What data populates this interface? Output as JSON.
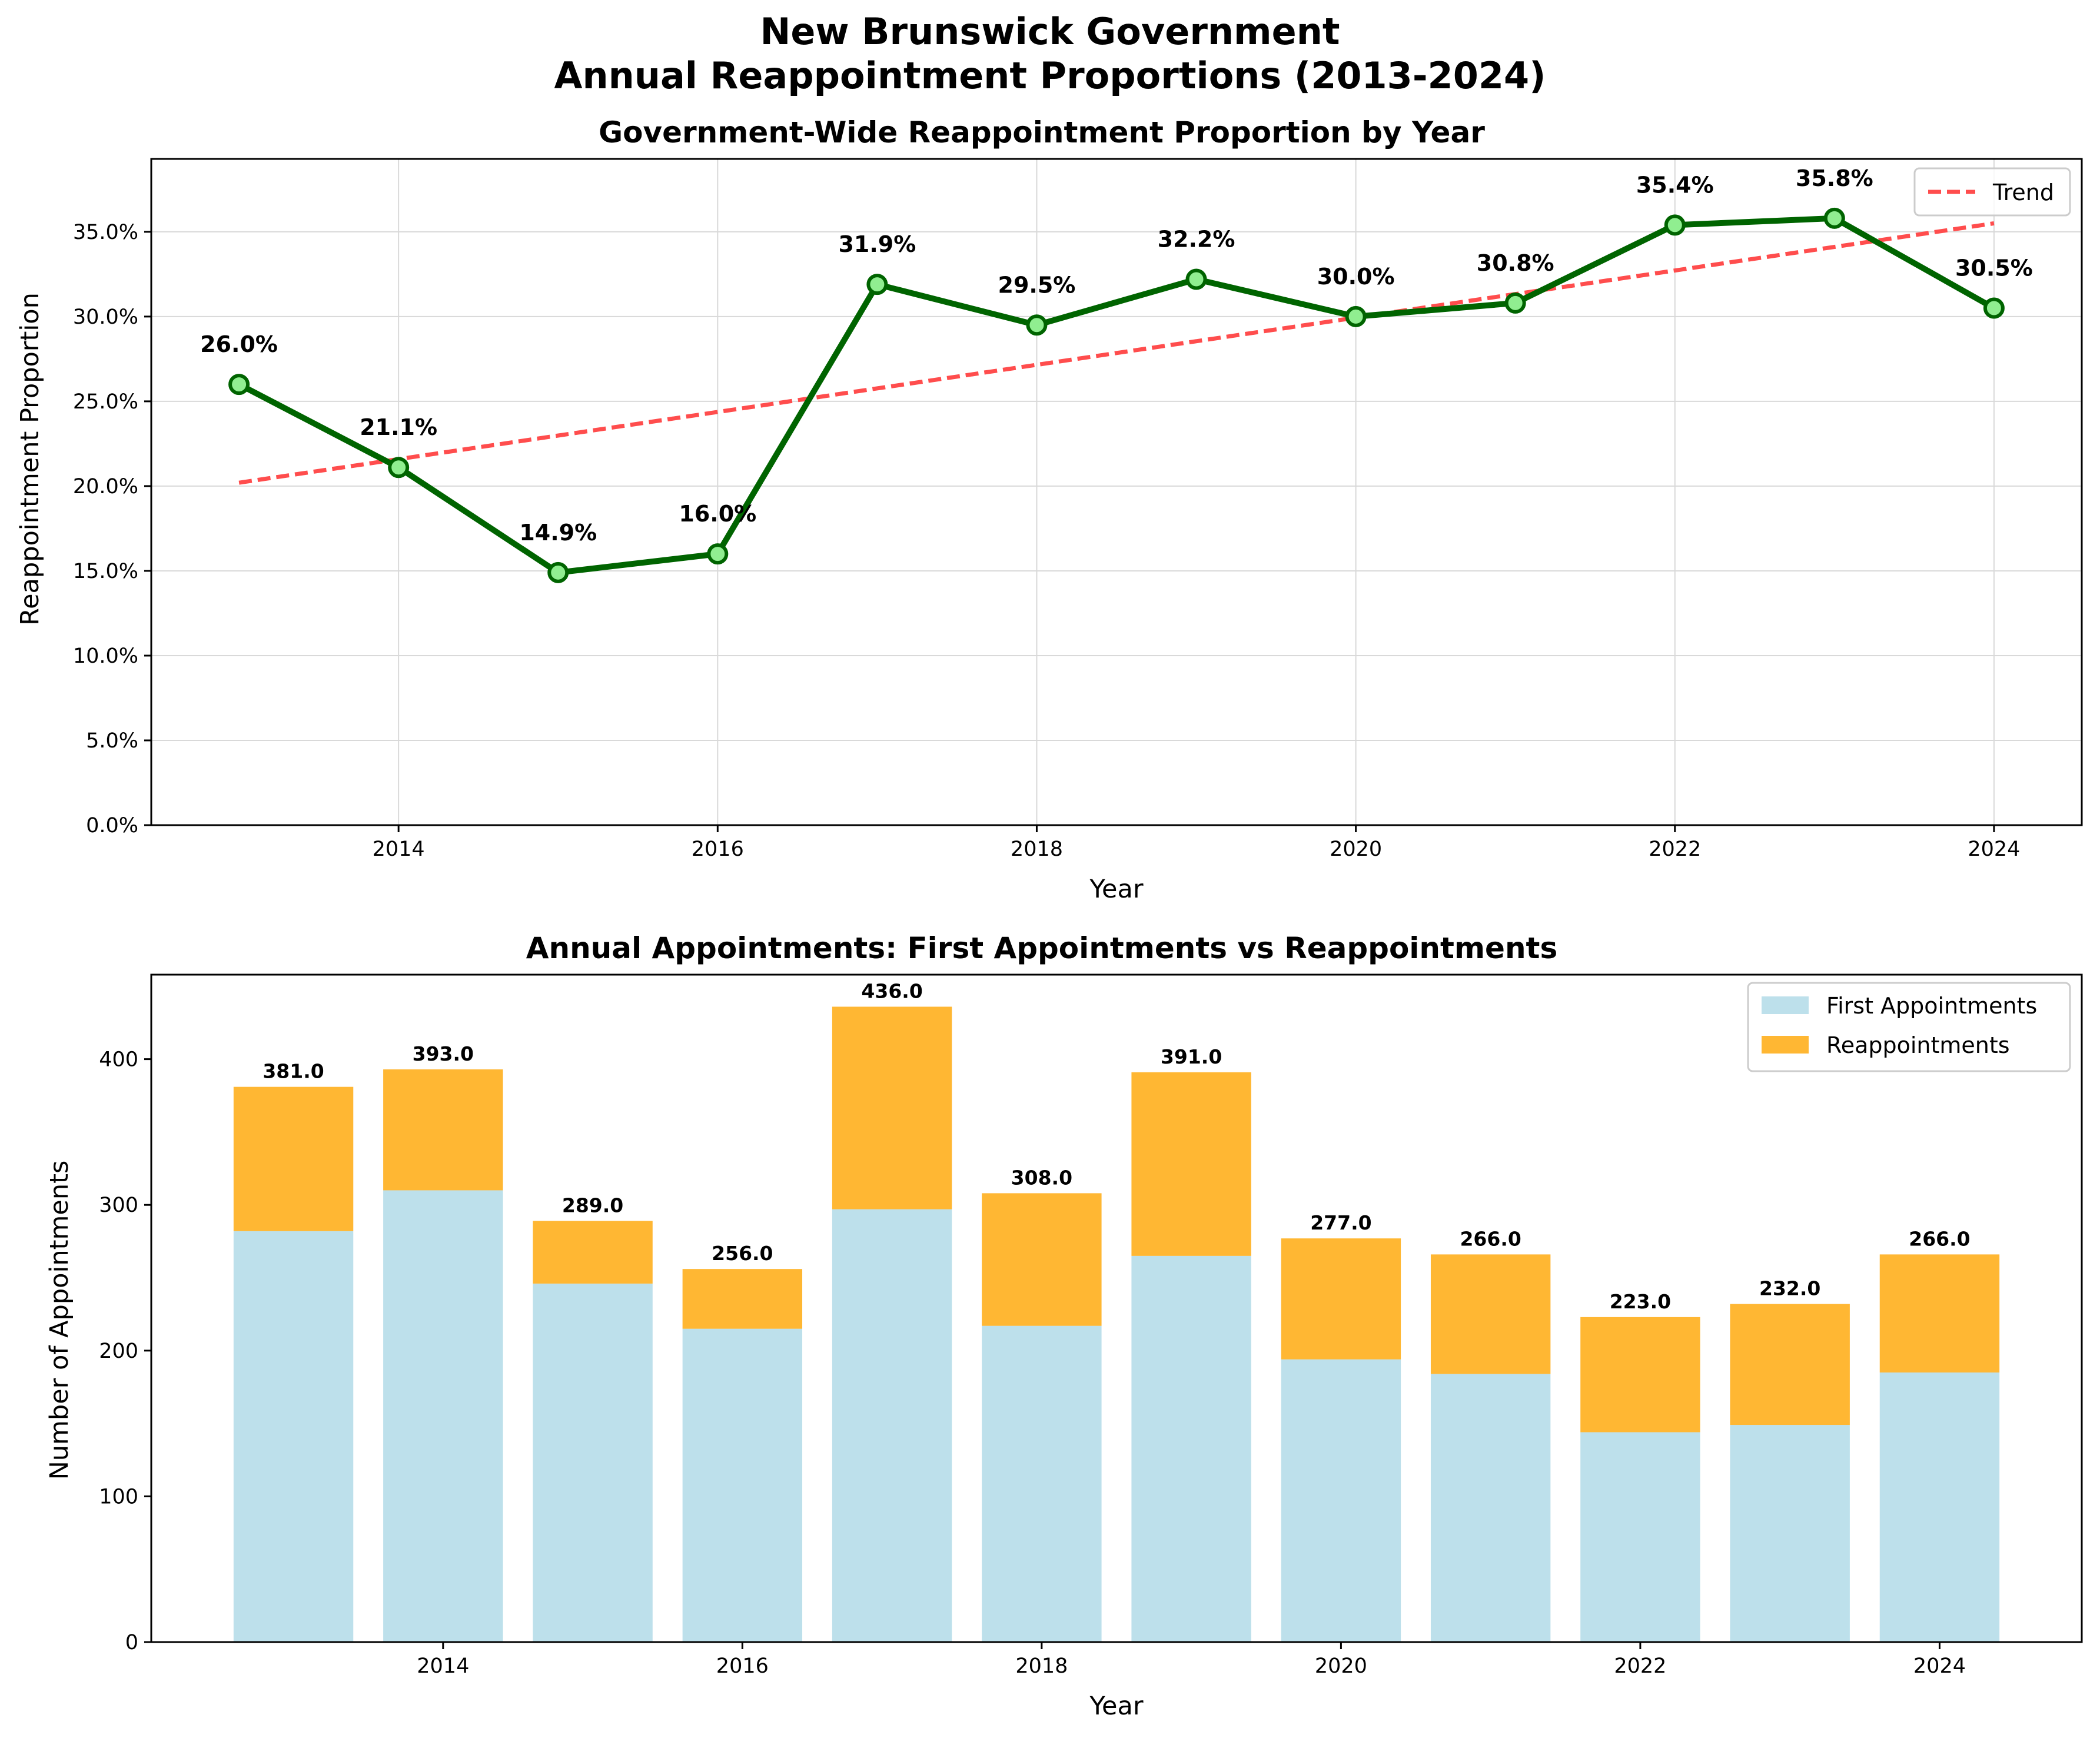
{
  "figure": {
    "suptitle_line1": "New Brunswick Government",
    "suptitle_line2": "Annual Reappointment Proportions (2013-2024)"
  },
  "colors": {
    "line": "#006400",
    "marker_fill": "#90ee90",
    "trend": "#ff4d4d",
    "first_appointments": "#add8e6",
    "reappointments": "#ffa500",
    "grid": "#d9d9d9"
  },
  "chart_data": [
    {
      "type": "line",
      "title": "Government-Wide Reappointment Proportion by Year",
      "xlabel": "Year",
      "ylabel": "Reappointment Proportion",
      "x": [
        2013,
        2014,
        2015,
        2016,
        2017,
        2018,
        2019,
        2020,
        2021,
        2022,
        2023,
        2024
      ],
      "xlim": [
        2012.45,
        2024.55
      ],
      "ylim": [
        0,
        39.3
      ],
      "x_ticks": [
        2014,
        2016,
        2018,
        2020,
        2022,
        2024
      ],
      "y_ticks": [
        0,
        5,
        10,
        15,
        20,
        25,
        30,
        35
      ],
      "y_tick_labels": [
        "0.0%",
        "5.0%",
        "10.0%",
        "15.0%",
        "20.0%",
        "25.0%",
        "30.0%",
        "35.0%"
      ],
      "grid": true,
      "legend": "top-right",
      "series": [
        {
          "values": [
            26.0,
            21.1,
            14.9,
            16.0,
            31.9,
            29.5,
            32.2,
            30.0,
            30.8,
            35.4,
            35.8,
            30.5
          ],
          "labels": [
            "26.0%",
            "21.1%",
            "14.9%",
            "16.0%",
            "31.9%",
            "29.5%",
            "32.2%",
            "30.0%",
            "30.8%",
            "35.4%",
            "35.8%",
            "30.5%"
          ]
        },
        {
          "name": "Trend",
          "style": "dashed",
          "x": [
            2013,
            2024
          ],
          "values": [
            20.2,
            35.5
          ]
        }
      ]
    },
    {
      "type": "bar",
      "stacked": true,
      "title": "Annual Appointments: First Appointments vs Reappointments",
      "xlabel": "Year",
      "ylabel": "Number of Appointments",
      "categories": [
        2013,
        2014,
        2015,
        2016,
        2017,
        2018,
        2019,
        2020,
        2021,
        2022,
        2023,
        2024
      ],
      "xlim": [
        2012.05,
        2024.95
      ],
      "ylim": [
        0,
        458
      ],
      "x_ticks": [
        2014,
        2016,
        2018,
        2020,
        2022,
        2024
      ],
      "y_ticks": [
        0,
        100,
        200,
        300,
        400
      ],
      "legend": "top-right",
      "series": [
        {
          "name": "First Appointments",
          "values": [
            282,
            310,
            246,
            215,
            297,
            217,
            265,
            194,
            184,
            144,
            149,
            185
          ]
        },
        {
          "name": "Reappointments",
          "values": [
            99,
            83,
            43,
            41,
            139,
            91,
            126,
            83,
            82,
            79,
            83,
            81
          ]
        }
      ],
      "totals": [
        381,
        393,
        289,
        256,
        436,
        308,
        391,
        277,
        266,
        223,
        232,
        266
      ],
      "total_labels": [
        "381.0",
        "393.0",
        "289.0",
        "256.0",
        "436.0",
        "308.0",
        "391.0",
        "277.0",
        "266.0",
        "223.0",
        "232.0",
        "266.0"
      ]
    }
  ]
}
